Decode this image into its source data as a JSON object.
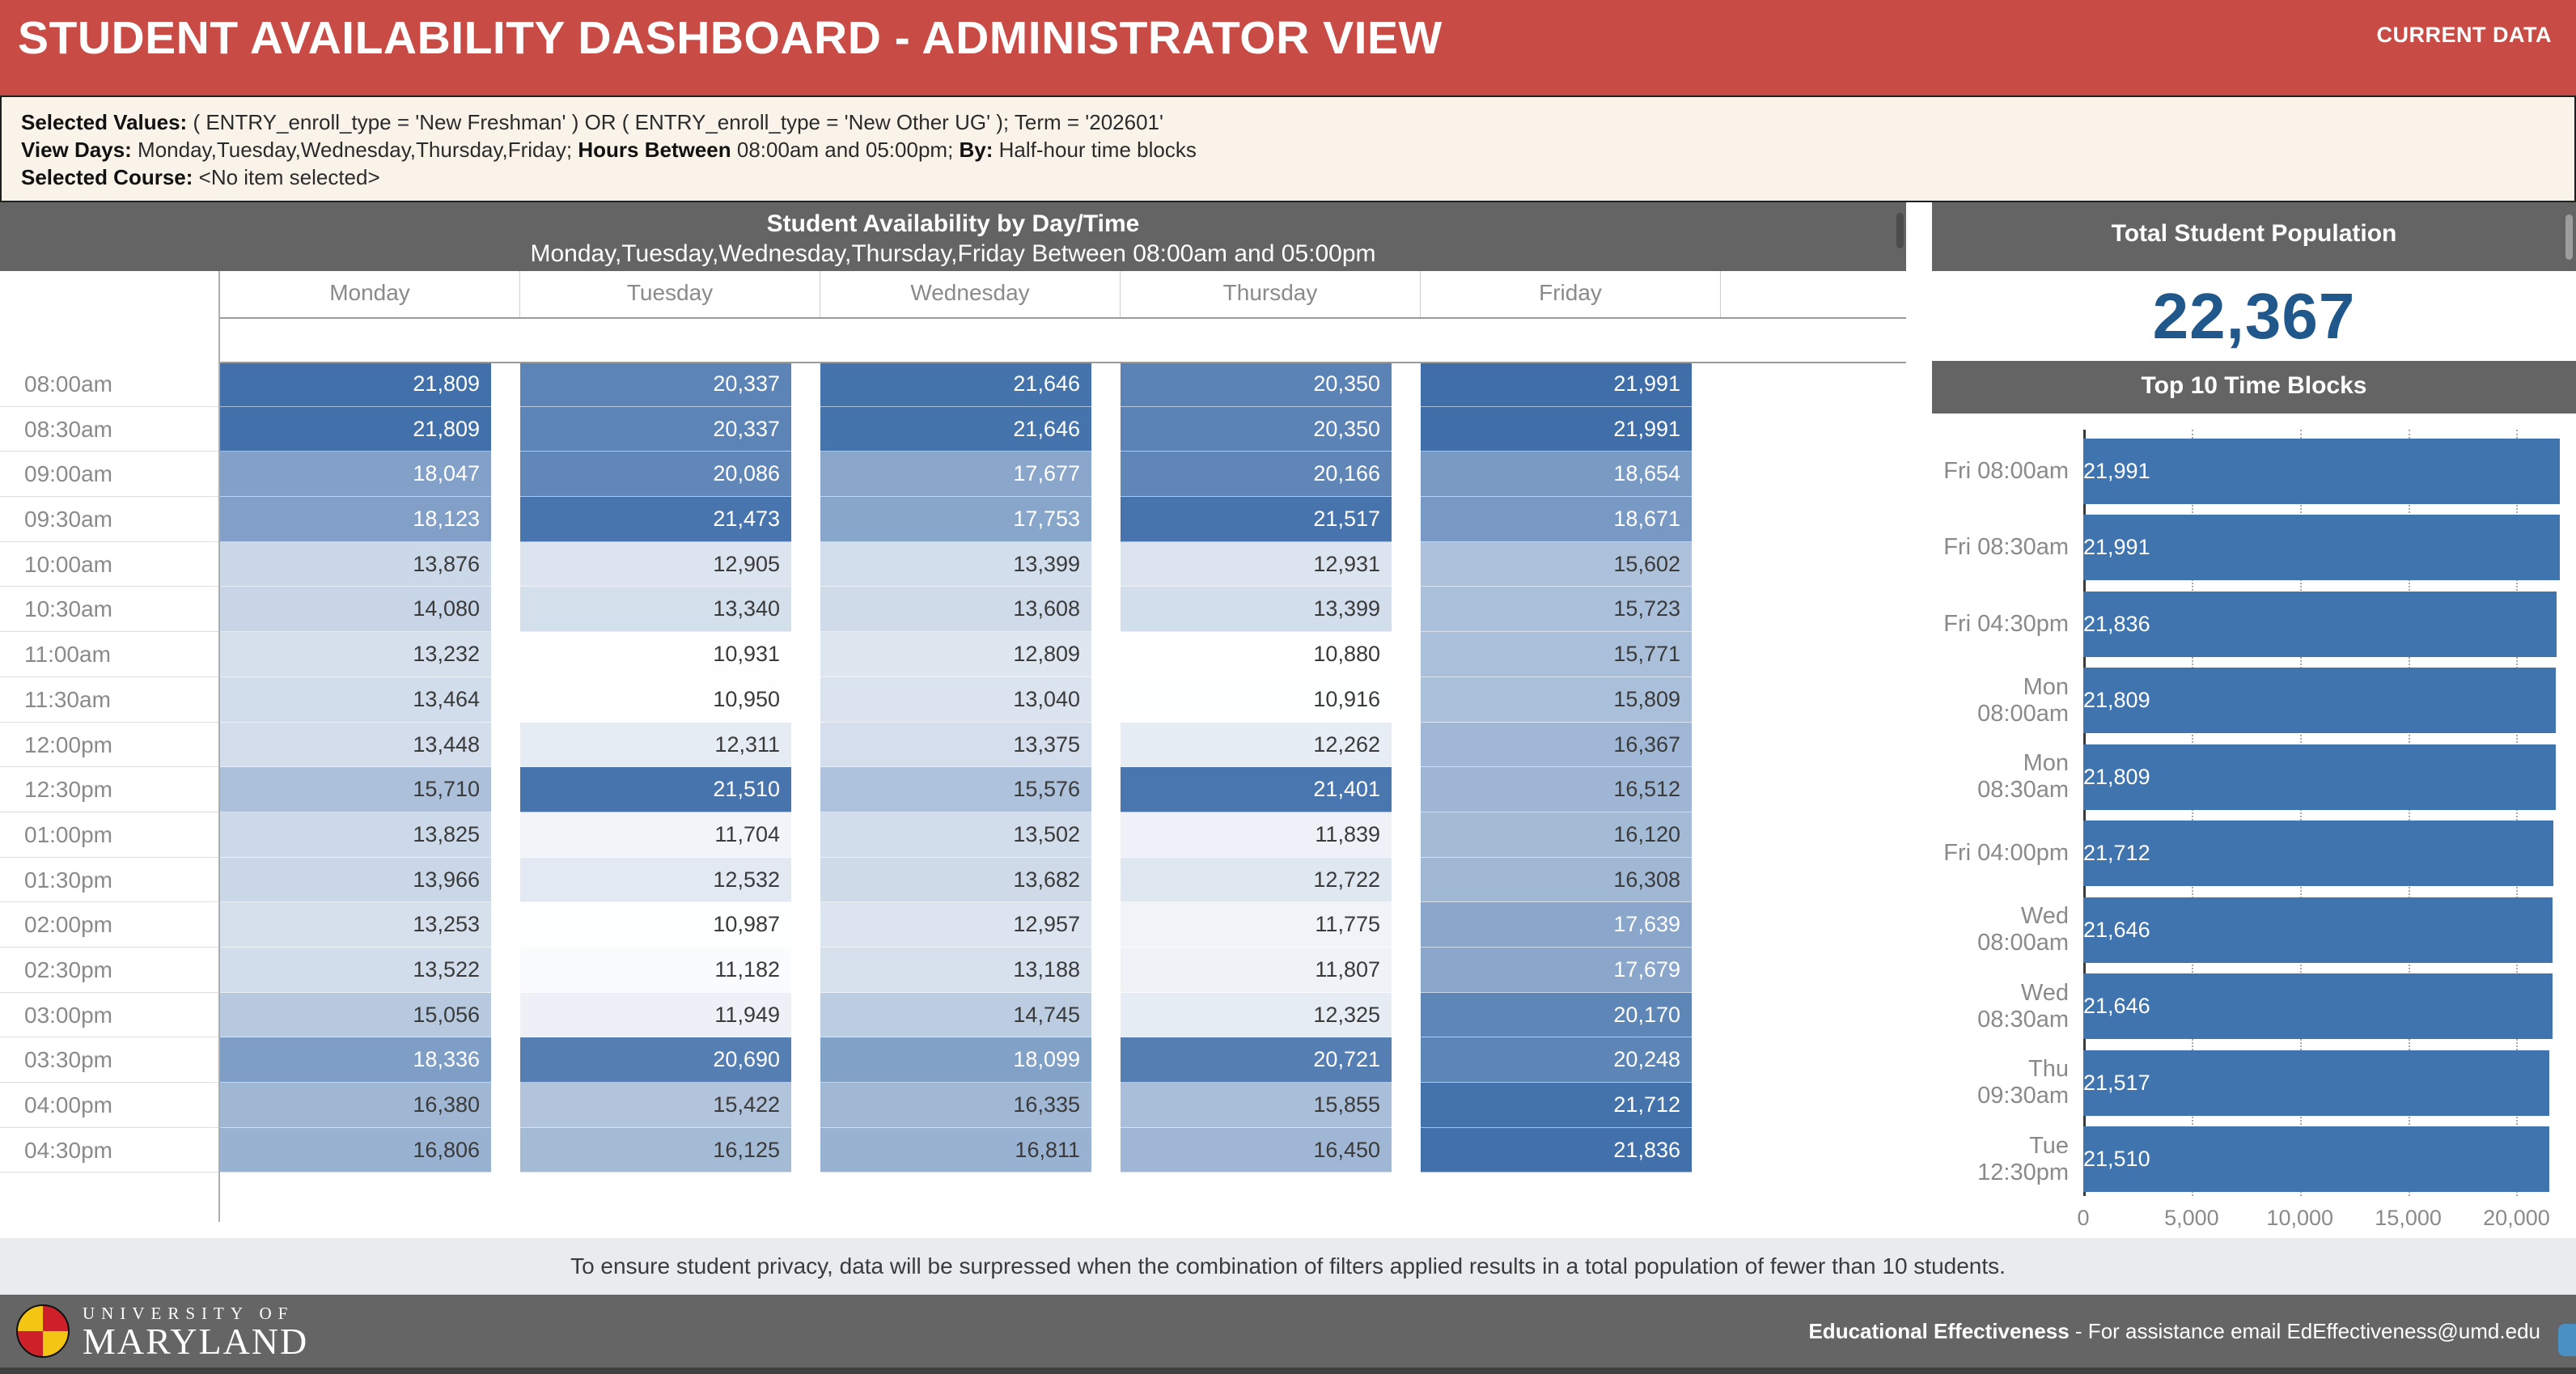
{
  "header": {
    "title": "STUDENT AVAILABILITY DASHBOARD - ADMINISTRATOR VIEW",
    "badge": "CURRENT DATA",
    "accent_color": "#C94B45"
  },
  "filters": {
    "lines": [
      [
        {
          "text": "Selected Values: ",
          "bold": true
        },
        {
          "text": "( ENTRY_enroll_type = 'New Freshman' ) OR ( ENTRY_enroll_type = 'New Other UG' ); Term = '202601'",
          "bold": false
        }
      ],
      [
        {
          "text": "View Days: ",
          "bold": true
        },
        {
          "text": "Monday,Tuesday,Wednesday,Thursday,Friday; ",
          "bold": false
        },
        {
          "text": "Hours Between ",
          "bold": true
        },
        {
          "text": "08:00am and 05:00pm; ",
          "bold": false
        },
        {
          "text": "By: ",
          "bold": true
        },
        {
          "text": "Half-hour time blocks",
          "bold": false
        }
      ],
      [
        {
          "text": "Selected Course: ",
          "bold": true
        },
        {
          "text": "<No item selected>",
          "bold": false
        }
      ]
    ]
  },
  "chart_data": [
    {
      "type": "heatmap",
      "title": "Student Availability by Day/Time",
      "subtitle": "Monday,Tuesday,Wednesday,Thursday,Friday Between 08:00am and 05:00pm",
      "columns": [
        "Monday",
        "Tuesday",
        "Wednesday",
        "Thursday",
        "Friday"
      ],
      "rows": [
        {
          "time": "08:00am",
          "values": [
            21809,
            20337,
            21646,
            20350,
            21991
          ]
        },
        {
          "time": "08:30am",
          "values": [
            21809,
            20337,
            21646,
            20350,
            21991
          ]
        },
        {
          "time": "09:00am",
          "values": [
            18047,
            20086,
            17677,
            20166,
            18654
          ]
        },
        {
          "time": "09:30am",
          "values": [
            18123,
            21473,
            17753,
            21517,
            18671
          ]
        },
        {
          "time": "10:00am",
          "values": [
            13876,
            12905,
            13399,
            12931,
            15602
          ]
        },
        {
          "time": "10:30am",
          "values": [
            14080,
            13340,
            13608,
            13399,
            15723
          ]
        },
        {
          "time": "11:00am",
          "values": [
            13232,
            10931,
            12809,
            10880,
            15771
          ]
        },
        {
          "time": "11:30am",
          "values": [
            13464,
            10950,
            13040,
            10916,
            15809
          ]
        },
        {
          "time": "12:00pm",
          "values": [
            13448,
            12311,
            13375,
            12262,
            16367
          ]
        },
        {
          "time": "12:30pm",
          "values": [
            15710,
            21510,
            15576,
            21401,
            16512
          ]
        },
        {
          "time": "01:00pm",
          "values": [
            13825,
            11704,
            13502,
            11839,
            16120
          ]
        },
        {
          "time": "01:30pm",
          "values": [
            13966,
            12532,
            13682,
            12722,
            16308
          ]
        },
        {
          "time": "02:00pm",
          "values": [
            13253,
            10987,
            12957,
            11775,
            17639
          ]
        },
        {
          "time": "02:30pm",
          "values": [
            13522,
            11182,
            13188,
            11807,
            17679
          ]
        },
        {
          "time": "03:00pm",
          "values": [
            15056,
            11949,
            14745,
            12325,
            20170
          ]
        },
        {
          "time": "03:30pm",
          "values": [
            18336,
            20690,
            18099,
            20721,
            20248
          ]
        },
        {
          "time": "04:00pm",
          "values": [
            16380,
            15422,
            16335,
            15855,
            21712
          ]
        },
        {
          "time": "04:30pm",
          "values": [
            16806,
            16125,
            16811,
            16450,
            21836
          ]
        }
      ],
      "color_scale": {
        "min_value": 10880,
        "max_value": 21991,
        "low": "#FFFFFF",
        "high": "#3F6EA9"
      },
      "text_dark": "#3A3A3A",
      "text_light": "#FFFFFF",
      "text_switch_value": 17200
    },
    {
      "type": "bar",
      "orientation": "horizontal",
      "title": "Top 10 Time Blocks",
      "categories": [
        "Fri 08:00am",
        "Fri 08:30am",
        "Fri 04:30pm",
        "Mon 08:00am",
        "Mon 08:30am",
        "Fri 04:00pm",
        "Wed 08:00am",
        "Wed 08:30am",
        "Thu 09:30am",
        "Tue 12:30pm"
      ],
      "values": [
        21991,
        21991,
        21836,
        21809,
        21809,
        21712,
        21646,
        21646,
        21517,
        21510
      ],
      "xlim": [
        0,
        22000
      ],
      "x_ticks": [
        {
          "value": 0,
          "label": "0"
        },
        {
          "value": 5000,
          "label": "5,000"
        },
        {
          "value": 10000,
          "label": "10,000"
        },
        {
          "value": 15000,
          "label": "15,000"
        },
        {
          "value": 20000,
          "label": "20,000"
        }
      ],
      "bar_color": "#3F74AE",
      "grid": true
    }
  ],
  "population": {
    "title": "Total Student Population",
    "value": "22,367",
    "color": "#20588C"
  },
  "footer": {
    "privacy_note": "To ensure student privacy, data will be surpressed when the combination of filters applied results in a total population of fewer than 10 students.",
    "logo": {
      "line1": "UNIVERSITY OF",
      "line2": "MARYLAND"
    },
    "credit_bold": "Educational Effectiveness",
    "credit_rest": " - For assistance email EdEffectiveness@umd.edu"
  }
}
